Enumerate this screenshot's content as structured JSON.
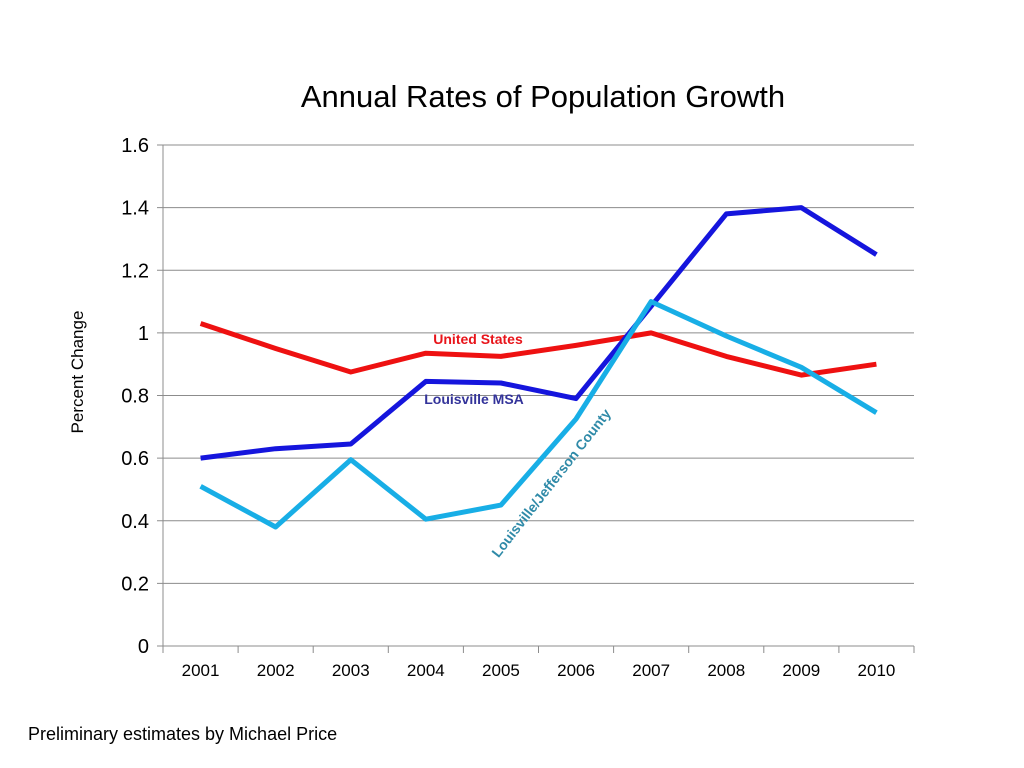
{
  "chart_data": {
    "type": "line",
    "title": "Annual Rates of Population Growth",
    "ylabel": "Percent Change",
    "xlabel": "",
    "categories": [
      "2001",
      "2002",
      "2003",
      "2004",
      "2005",
      "2006",
      "2007",
      "2008",
      "2009",
      "2010"
    ],
    "ylim": [
      0,
      1.6
    ],
    "yticks": [
      "0",
      "0.2",
      "0.4",
      "0.6",
      "0.8",
      "1",
      "1.2",
      "1.4",
      "1.6"
    ],
    "grid": true,
    "legend": "inline labels",
    "series": [
      {
        "name": "United States",
        "color": "#ee1111",
        "label_color": "#e8141a",
        "values": [
          1.03,
          0.95,
          0.875,
          0.935,
          0.925,
          0.96,
          1.0,
          0.925,
          0.865,
          0.9
        ]
      },
      {
        "name": "Louisville MSA",
        "color": "#1515dd",
        "label_color": "#33339a",
        "values": [
          0.6,
          0.63,
          0.645,
          0.845,
          0.84,
          0.79,
          1.085,
          1.38,
          1.4,
          1.25
        ]
      },
      {
        "name": "Louisville/Jefferson County",
        "color": "#18aee6",
        "label_color": "#2f8aa8",
        "values": [
          0.51,
          0.38,
          0.595,
          0.405,
          0.45,
          0.725,
          1.1,
          0.99,
          0.89,
          0.745
        ]
      }
    ]
  },
  "footnote": "Preliminary estimates by Michael Price"
}
